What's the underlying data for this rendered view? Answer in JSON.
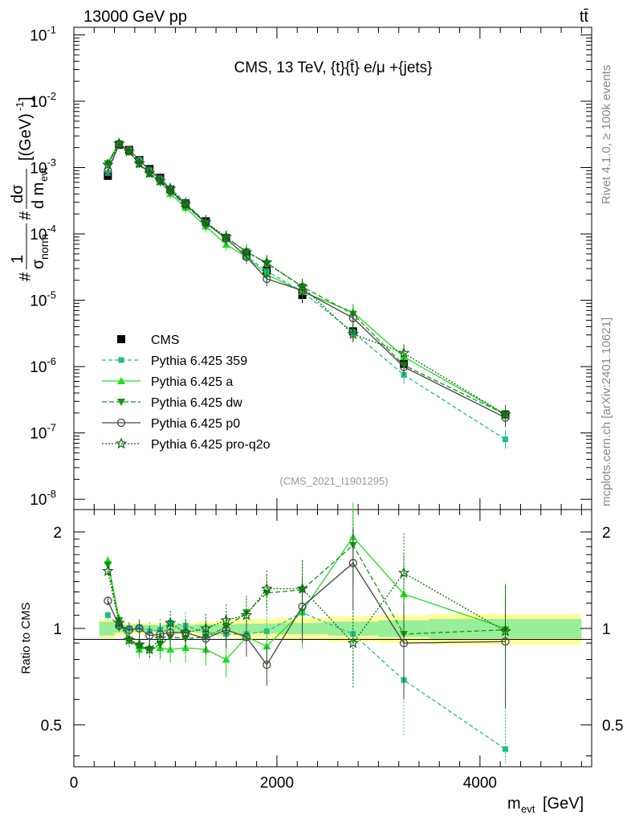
{
  "header": {
    "left": "13000 GeV pp",
    "right": "tt̄"
  },
  "side_labels": {
    "right_top": "Rivet 4.1.0, ≥ 100k events",
    "right_bottom": "mcplots.cern.ch [arXiv:2401.10621]"
  },
  "chart_data": {
    "type": "line",
    "title": "CMS, 13 TeV, {t}{t̄} e/μ +{jets}",
    "watermark": "(CMS_2021_I1901295)",
    "xlabel": "m_evt [GeV]",
    "xlabel_main": "m",
    "xlabel_sub": "evt",
    "xlabel_unit": "[GeV]",
    "ylabel": "1/σ_norm dσ/d m_evt [(GeV)^-1]",
    "ratio_ylabel": "Ratio to CMS",
    "xlim": [
      0,
      5100
    ],
    "ylim": [
      7e-09,
      0.13
    ],
    "ratio_ylim": [
      0.37,
      2.35
    ],
    "x_ticks": [
      0,
      2000,
      4000
    ],
    "x_tick_labels": [
      "0",
      "2000",
      "4000"
    ],
    "y_tick_labels": [
      "10^-8",
      "10^-7",
      "10^-6",
      "10^-5",
      "10^-4",
      "10^-3",
      "10^-2",
      "10^-1"
    ],
    "ratio_tick_labels": [
      "0.5",
      "1",
      "2"
    ],
    "ratio_ticks": [
      0.5,
      1,
      2
    ],
    "legend_position": "lower-left",
    "x": [
      335,
      445,
      545,
      645,
      745,
      850,
      950,
      1100,
      1300,
      1500,
      1700,
      1900,
      2250,
      2750,
      3250,
      4250
    ],
    "bin_edges": [
      250,
      400,
      500,
      600,
      700,
      800,
      900,
      1000,
      1200,
      1400,
      1600,
      1800,
      2000,
      2500,
      3000,
      3500,
      5000
    ],
    "band_stat": [
      0.05,
      0.03,
      0.025,
      0.025,
      0.025,
      0.025,
      0.025,
      0.025,
      0.03,
      0.03,
      0.035,
      0.035,
      0.04,
      0.05,
      0.06,
      0.07
    ],
    "band_total": [
      0.07,
      0.05,
      0.04,
      0.04,
      0.04,
      0.04,
      0.04,
      0.04,
      0.05,
      0.06,
      0.07,
      0.07,
      0.08,
      0.09,
      0.1,
      0.11
    ],
    "series": [
      {
        "name": "CMS",
        "color": "#000000",
        "marker": "square",
        "dash": "",
        "values": [
          0.00075,
          0.0022,
          0.00185,
          0.0013,
          0.00095,
          0.0007,
          0.00047,
          0.00029,
          0.000155,
          8.7e-05,
          4.8e-05,
          2.8e-05,
          1.2e-05,
          3.4e-06,
          1.1e-06,
          1.9e-07
        ],
        "ratio": [
          1,
          1,
          1,
          1,
          1,
          1,
          1,
          1,
          1,
          1,
          1,
          1,
          1,
          1,
          1,
          1
        ]
      },
      {
        "name": "Pythia 6.425 359",
        "color": "#1fbe8c",
        "marker": "small-square",
        "dash": "5,3",
        "values": [
          0.00083,
          0.00225,
          0.00185,
          0.00132,
          0.00093,
          0.00069,
          0.00049,
          0.000295,
          0.00015,
          8.4e-05,
          4.6e-05,
          2.75e-05,
          1.35e-05,
          3.3e-06,
          7.5e-07,
          8e-08
        ],
        "ratio": [
          1.1,
          1.02,
          1.0,
          1.01,
          0.98,
          0.99,
          1.04,
          1.02,
          0.97,
          0.96,
          0.96,
          0.98,
          1.12,
          0.96,
          0.69,
          0.42
        ]
      },
      {
        "name": "Pythia 6.425 a",
        "color": "#22dd22",
        "marker": "triangle-up",
        "dash": "",
        "values": [
          0.0012,
          0.00235,
          0.00172,
          0.00112,
          0.00082,
          0.00061,
          0.000405,
          0.00025,
          0.00013,
          6.9e-05,
          4.5e-05,
          2.45e-05,
          1.35e-05,
          6.6e-06,
          1.4e-06,
          1.9e-07
        ],
        "ratio": [
          1.63,
          1.07,
          0.93,
          0.86,
          0.87,
          0.87,
          0.86,
          0.87,
          0.86,
          0.8,
          0.94,
          0.88,
          1.13,
          1.93,
          1.28,
          1.0
        ]
      },
      {
        "name": "Pythia 6.425 dw",
        "color": "#119911",
        "marker": "triangle-down",
        "dash": "6,3",
        "values": [
          0.00115,
          0.0023,
          0.0017,
          0.00115,
          0.00082,
          0.00062,
          0.00044,
          0.00027,
          0.000145,
          8.8e-05,
          5.4e-05,
          3.6e-05,
          1.6e-05,
          6.2e-06,
          1.05e-06,
          1.9e-07
        ],
        "ratio": [
          1.58,
          1.06,
          0.92,
          0.88,
          0.86,
          0.89,
          0.94,
          0.93,
          0.94,
          1.01,
          1.12,
          1.29,
          1.32,
          1.82,
          0.96,
          0.99
        ]
      },
      {
        "name": "Pythia 6.425 p0",
        "color": "#444444",
        "marker": "circle-open",
        "dash": "",
        "values": [
          0.0009,
          0.00225,
          0.00185,
          0.0013,
          0.0009,
          0.00067,
          0.00045,
          0.00028,
          0.000145,
          8.6e-05,
          4.5e-05,
          2.1e-05,
          1.4e-05,
          5.4e-06,
          9.9e-07,
          1.7e-07
        ],
        "ratio": [
          1.22,
          1.02,
          0.99,
          1.0,
          0.95,
          0.96,
          0.97,
          0.97,
          0.93,
          0.99,
          0.94,
          0.77,
          1.17,
          1.6,
          0.9,
          0.91
        ]
      },
      {
        "name": "Pythia 6.425 pro-q2o",
        "color": "#116611",
        "marker": "star-open",
        "dash": "2,2",
        "values": [
          0.0011,
          0.0023,
          0.00175,
          0.00115,
          0.00082,
          0.00063,
          0.00048,
          0.00028,
          0.00015,
          9e-05,
          5.3e-05,
          3.7e-05,
          1.6e-05,
          3.1e-06,
          1.6e-06,
          1.9e-07
        ],
        "ratio": [
          1.51,
          1.04,
          0.92,
          0.89,
          0.86,
          0.93,
          1.04,
          0.97,
          1.0,
          1.06,
          1.1,
          1.33,
          1.33,
          0.9,
          1.49,
          0.98
        ]
      }
    ]
  }
}
